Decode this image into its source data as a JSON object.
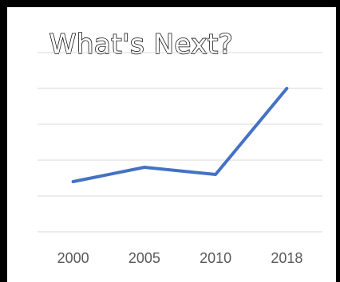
{
  "chart_data": {
    "type": "line",
    "title": "What's Next?",
    "xlabel": "",
    "ylabel": "",
    "categories": [
      "2000",
      "2005",
      "2010",
      "2018"
    ],
    "series": [
      {
        "values": [
          1.4,
          1.8,
          1.6,
          4.0
        ]
      }
    ],
    "ylim": [
      0,
      5
    ],
    "grid": true,
    "legend": "none",
    "colors": {
      "line": "#4472C4",
      "grid": "#D9D9D9",
      "axis": "#D9D9D9",
      "tick_label": "#595959",
      "title_fill": "#FFFFFF",
      "title_stroke": "#111111",
      "frame": "#000000"
    }
  }
}
